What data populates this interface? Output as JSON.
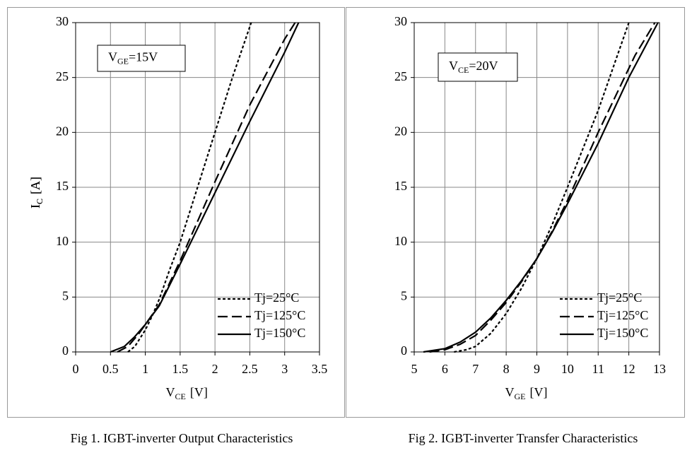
{
  "chart_data": [
    {
      "type": "line",
      "caption": "Fig 1. IGBT-inverter Output Characteristics",
      "annotation": [
        "V",
        "GE",
        "=15V"
      ],
      "xlabel": [
        "V",
        "CE",
        "[V]"
      ],
      "ylabel": [
        "I",
        "C",
        "[A]"
      ],
      "xlim": [
        0,
        3.5
      ],
      "xticks": [
        0,
        0.5,
        1,
        1.5,
        2,
        2.5,
        3,
        3.5
      ],
      "ylim": [
        0,
        30
      ],
      "yticks": [
        0,
        5,
        10,
        15,
        20,
        25,
        30
      ],
      "grid": true,
      "legend": "lower right",
      "series": [
        {
          "name": "Tj=25°C",
          "color": "#000000",
          "dash": "short",
          "x": [
            0.75,
            0.85,
            1.0,
            1.1,
            1.2,
            1.35,
            1.5,
            1.75,
            2.0,
            2.25,
            2.52
          ],
          "values": [
            0,
            0.5,
            2,
            3.3,
            4.8,
            7.5,
            10,
            15,
            20,
            25,
            30
          ]
        },
        {
          "name": "Tj=125°C",
          "color": "#000000",
          "dash": "long",
          "x": [
            0.6,
            0.75,
            0.9,
            1.0,
            1.2,
            1.5,
            2.0,
            2.5,
            3.0,
            3.15
          ],
          "values": [
            0,
            0.5,
            1.6,
            2.5,
            4.3,
            8.3,
            15.5,
            22.5,
            28.5,
            30
          ]
        },
        {
          "name": "Tj=150°C",
          "color": "#000000",
          "dash": "solid",
          "x": [
            0.5,
            0.7,
            0.85,
            1.0,
            1.2,
            1.5,
            2.0,
            2.5,
            3.0,
            3.2
          ],
          "values": [
            0,
            0.5,
            1.4,
            2.5,
            4.2,
            8,
            14.5,
            21,
            27.3,
            30
          ]
        }
      ]
    },
    {
      "type": "line",
      "caption": "Fig 2. IGBT-inverter Transfer Characteristics",
      "annotation": [
        "V",
        "CE",
        "=20V"
      ],
      "xlabel": [
        "V",
        "GE",
        "[V]"
      ],
      "ylabel": [
        "I",
        "C",
        "[A]"
      ],
      "xlim": [
        5,
        13
      ],
      "xticks": [
        5,
        6,
        7,
        8,
        9,
        10,
        11,
        12,
        13
      ],
      "ylim": [
        0,
        30
      ],
      "yticks": [
        0,
        5,
        10,
        15,
        20,
        25,
        30
      ],
      "grid": true,
      "legend": "lower right",
      "series": [
        {
          "name": "Tj=25°C",
          "color": "#000000",
          "dash": "short",
          "x": [
            6.3,
            6.7,
            7,
            7.5,
            8,
            8.5,
            9,
            9.5,
            10,
            10.5,
            11,
            11.5,
            12
          ],
          "values": [
            0,
            0.2,
            0.5,
            1.7,
            3.5,
            5.8,
            8.5,
            11.6,
            15,
            18.5,
            22,
            26,
            30
          ]
        },
        {
          "name": "Tj=125°C",
          "color": "#000000",
          "dash": "long",
          "x": [
            5.5,
            6,
            6.5,
            7,
            7.5,
            8,
            8.5,
            9,
            9.5,
            10,
            11,
            12.2,
            12.85
          ],
          "values": [
            0,
            0.2,
            0.7,
            1.5,
            2.9,
            4.5,
            6.4,
            8.5,
            11,
            13.8,
            20,
            27,
            30
          ]
        },
        {
          "name": "Tj=150°C",
          "color": "#000000",
          "dash": "solid",
          "x": [
            5.3,
            6,
            6.5,
            7,
            7.5,
            8,
            8.5,
            9,
            9.5,
            10,
            11,
            12,
            12.95
          ],
          "values": [
            0,
            0.3,
            0.9,
            1.8,
            3.1,
            4.7,
            6.5,
            8.5,
            10.9,
            13.5,
            19,
            25,
            30
          ]
        }
      ]
    }
  ]
}
